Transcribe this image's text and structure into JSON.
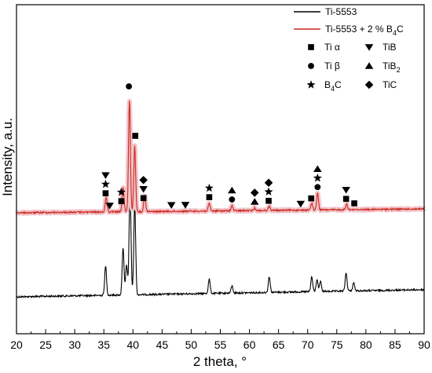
{
  "chart_data": {
    "type": "line",
    "xlabel": "2 theta, °",
    "ylabel": "Intensity, a.u.",
    "xlim": [
      20,
      90
    ],
    "x_ticks": [
      20,
      25,
      30,
      35,
      40,
      45,
      50,
      55,
      60,
      65,
      70,
      75,
      80,
      85,
      90
    ],
    "x_tick_labels": [
      "20",
      "25",
      "30",
      "35",
      "40",
      "45",
      "50",
      "55",
      "60",
      "65",
      "70",
      "75",
      "80",
      "85",
      "90"
    ],
    "ylim": [
      0,
      100
    ],
    "legend_position": "top-right",
    "series": [
      {
        "name": "Ti-5553",
        "color": "#000000",
        "peaks": [
          {
            "x": 35.3,
            "y": 11.5
          },
          {
            "x": 38.3,
            "y": 18.5
          },
          {
            "x": 38.9,
            "y": 12.0
          },
          {
            "x": 39.5,
            "y": 43.0
          },
          {
            "x": 40.3,
            "y": 37.0
          },
          {
            "x": 53.1,
            "y": 5.7
          },
          {
            "x": 57.0,
            "y": 2.8
          },
          {
            "x": 63.4,
            "y": 6.3
          },
          {
            "x": 70.7,
            "y": 5.8
          },
          {
            "x": 71.6,
            "y": 4.7
          },
          {
            "x": 72.2,
            "y": 4.0
          },
          {
            "x": 76.6,
            "y": 7.2
          },
          {
            "x": 77.9,
            "y": 3.3
          }
        ]
      },
      {
        "name": "Ti-5553 + 2 % B4C",
        "legend_label_main": "Ti-5553 + 2 % B",
        "legend_label_sub": "4",
        "legend_label_end": "C",
        "color": "#cc2a1e",
        "band_color": "#f2c4cb",
        "peaks": [
          {
            "x": 35.4,
            "y": 6.0
          },
          {
            "x": 38.3,
            "y": 10.0
          },
          {
            "x": 39.4,
            "y": 44.0
          },
          {
            "x": 40.3,
            "y": 26.0
          },
          {
            "x": 42.0,
            "y": 6.3
          },
          {
            "x": 53.1,
            "y": 3.0
          },
          {
            "x": 57.0,
            "y": 2.0
          },
          {
            "x": 60.9,
            "y": 1.0
          },
          {
            "x": 63.4,
            "y": 1.6
          },
          {
            "x": 70.7,
            "y": 2.6
          },
          {
            "x": 71.7,
            "y": 6.6
          },
          {
            "x": 76.7,
            "y": 2.2
          }
        ]
      }
    ],
    "phase_legend": [
      {
        "symbol": "square",
        "label": "Ti α"
      },
      {
        "symbol": "triangle-down",
        "label": "TiB"
      },
      {
        "symbol": "circle",
        "label": "Ti β"
      },
      {
        "symbol": "triangle-up",
        "label": "TiB",
        "sub": "2"
      },
      {
        "symbol": "star",
        "label": "B",
        "sub": "4",
        "after": "C"
      },
      {
        "symbol": "diamond",
        "label": "TiC"
      }
    ],
    "peak_markers": [
      {
        "x": 35.3,
        "stack": [
          "square",
          "star",
          "triangle-down"
        ]
      },
      {
        "x": 36.0,
        "stack": [
          "triangle-down"
        ]
      },
      {
        "x": 38.0,
        "stack": [
          "square",
          "star"
        ]
      },
      {
        "x": 39.3,
        "stack": [
          "circle"
        ]
      },
      {
        "x": 40.4,
        "stack": [
          "square"
        ]
      },
      {
        "x": 41.8,
        "stack": [
          "square",
          "triangle-down",
          "diamond"
        ]
      },
      {
        "x": 46.6,
        "stack": [
          "triangle-down"
        ]
      },
      {
        "x": 49.0,
        "stack": [
          "triangle-down"
        ]
      },
      {
        "x": 53.1,
        "stack": [
          "square",
          "star"
        ]
      },
      {
        "x": 57.0,
        "stack": [
          "circle",
          "triangle-up"
        ]
      },
      {
        "x": 60.9,
        "stack": [
          "triangle-up",
          "diamond"
        ]
      },
      {
        "x": 63.3,
        "stack": [
          "square",
          "star",
          "diamond"
        ]
      },
      {
        "x": 68.8,
        "stack": [
          "triangle-down"
        ]
      },
      {
        "x": 70.6,
        "stack": [
          "square"
        ]
      },
      {
        "x": 71.7,
        "stack": [
          "circle",
          "star",
          "triangle-up"
        ]
      },
      {
        "x": 76.6,
        "stack": [
          "square",
          "triangle-down"
        ]
      },
      {
        "x": 78.0,
        "stack": [
          "square"
        ]
      }
    ]
  }
}
